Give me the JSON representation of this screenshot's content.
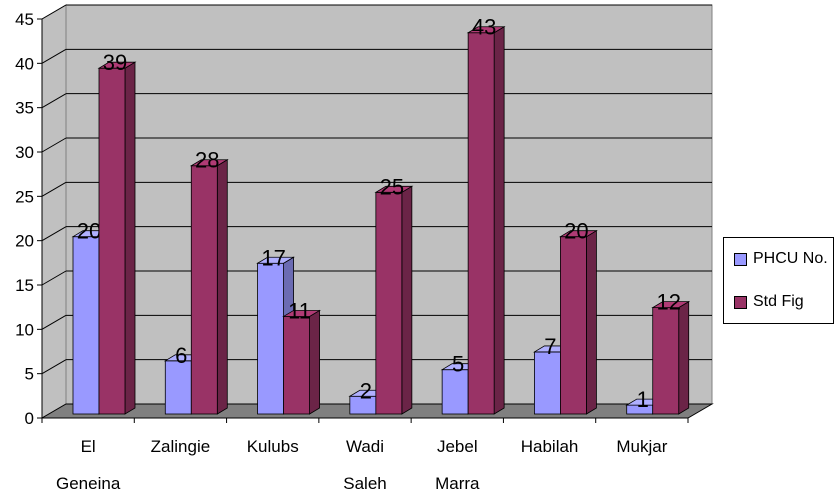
{
  "chart_data": {
    "type": "bar",
    "categories": [
      [
        "El",
        "Geneina"
      ],
      [
        "Zalingie"
      ],
      [
        "Kulubs"
      ],
      [
        "Wadi",
        "Saleh"
      ],
      [
        "Jebel",
        "Marra"
      ],
      [
        "Habilah"
      ],
      [
        "Mukjar"
      ]
    ],
    "series": [
      {
        "name": "PHCU No.",
        "values": [
          20,
          6,
          17,
          2,
          5,
          7,
          1
        ],
        "color": "#9999ff"
      },
      {
        "name": "Std Fig",
        "values": [
          39,
          28,
          11,
          25,
          43,
          20,
          12
        ],
        "color": "#993366"
      }
    ],
    "y_ticks": [
      "0",
      "5",
      "10",
      "15",
      "20",
      "25",
      "30",
      "35",
      "40",
      "45"
    ],
    "ylim": [
      0,
      45
    ],
    "grid": true,
    "legend_position": "right",
    "plot_background": "#c0c0c0",
    "floor_color": "#808080"
  }
}
